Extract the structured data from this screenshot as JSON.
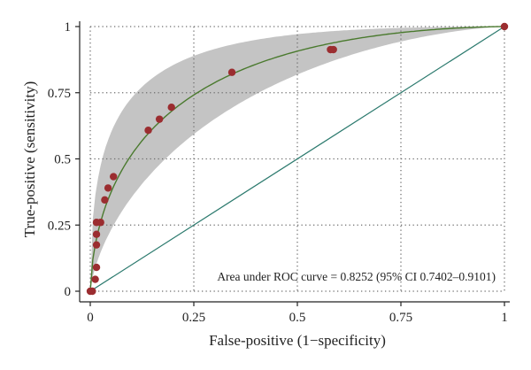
{
  "chart_data": {
    "type": "scatter",
    "xlabel": "False-positive (1−specificity)",
    "ylabel": "True-positive (sensitivity)",
    "xlim": [
      0,
      1
    ],
    "ylim": [
      0,
      1
    ],
    "x_ticks": [
      "0",
      "0.25",
      "0.5",
      "0.75",
      "1"
    ],
    "y_ticks": [
      "0",
      "0.25",
      "0.5",
      "0.75",
      "1"
    ],
    "x_tick_values": [
      0,
      0.25,
      0.5,
      0.75,
      1
    ],
    "y_tick_values": [
      0,
      0.25,
      0.5,
      0.75,
      1
    ],
    "grid": true,
    "annotation": "Area under ROC curve = 0.8252 (95% CI 0.7402–0.9101)",
    "points": [
      {
        "x": 0.0,
        "y": 0.0
      },
      {
        "x": 0.005,
        "y": 0.0
      },
      {
        "x": 0.012,
        "y": 0.045
      },
      {
        "x": 0.015,
        "y": 0.09
      },
      {
        "x": 0.015,
        "y": 0.175
      },
      {
        "x": 0.015,
        "y": 0.215
      },
      {
        "x": 0.015,
        "y": 0.26
      },
      {
        "x": 0.025,
        "y": 0.26
      },
      {
        "x": 0.035,
        "y": 0.345
      },
      {
        "x": 0.043,
        "y": 0.39
      },
      {
        "x": 0.056,
        "y": 0.433
      },
      {
        "x": 0.14,
        "y": 0.608
      },
      {
        "x": 0.167,
        "y": 0.65
      },
      {
        "x": 0.196,
        "y": 0.695
      },
      {
        "x": 0.342,
        "y": 0.827
      },
      {
        "x": 0.58,
        "y": 0.913
      },
      {
        "x": 0.587,
        "y": 0.913
      },
      {
        "x": 1.0,
        "y": 1.0
      }
    ],
    "fitted_curve": {
      "model": "binormal",
      "auc": 0.8252
    },
    "confidence_band": {
      "auc_lower": 0.7402,
      "auc_upper": 0.9101
    },
    "reference_line": [
      [
        0,
        0
      ],
      [
        1,
        1
      ]
    ],
    "colors": {
      "points": "#9b2d30",
      "curve": "#4a7a2e",
      "band": "#c4c4c4",
      "reference": "#2c7a6e",
      "grid": "#6f6f6f"
    }
  }
}
